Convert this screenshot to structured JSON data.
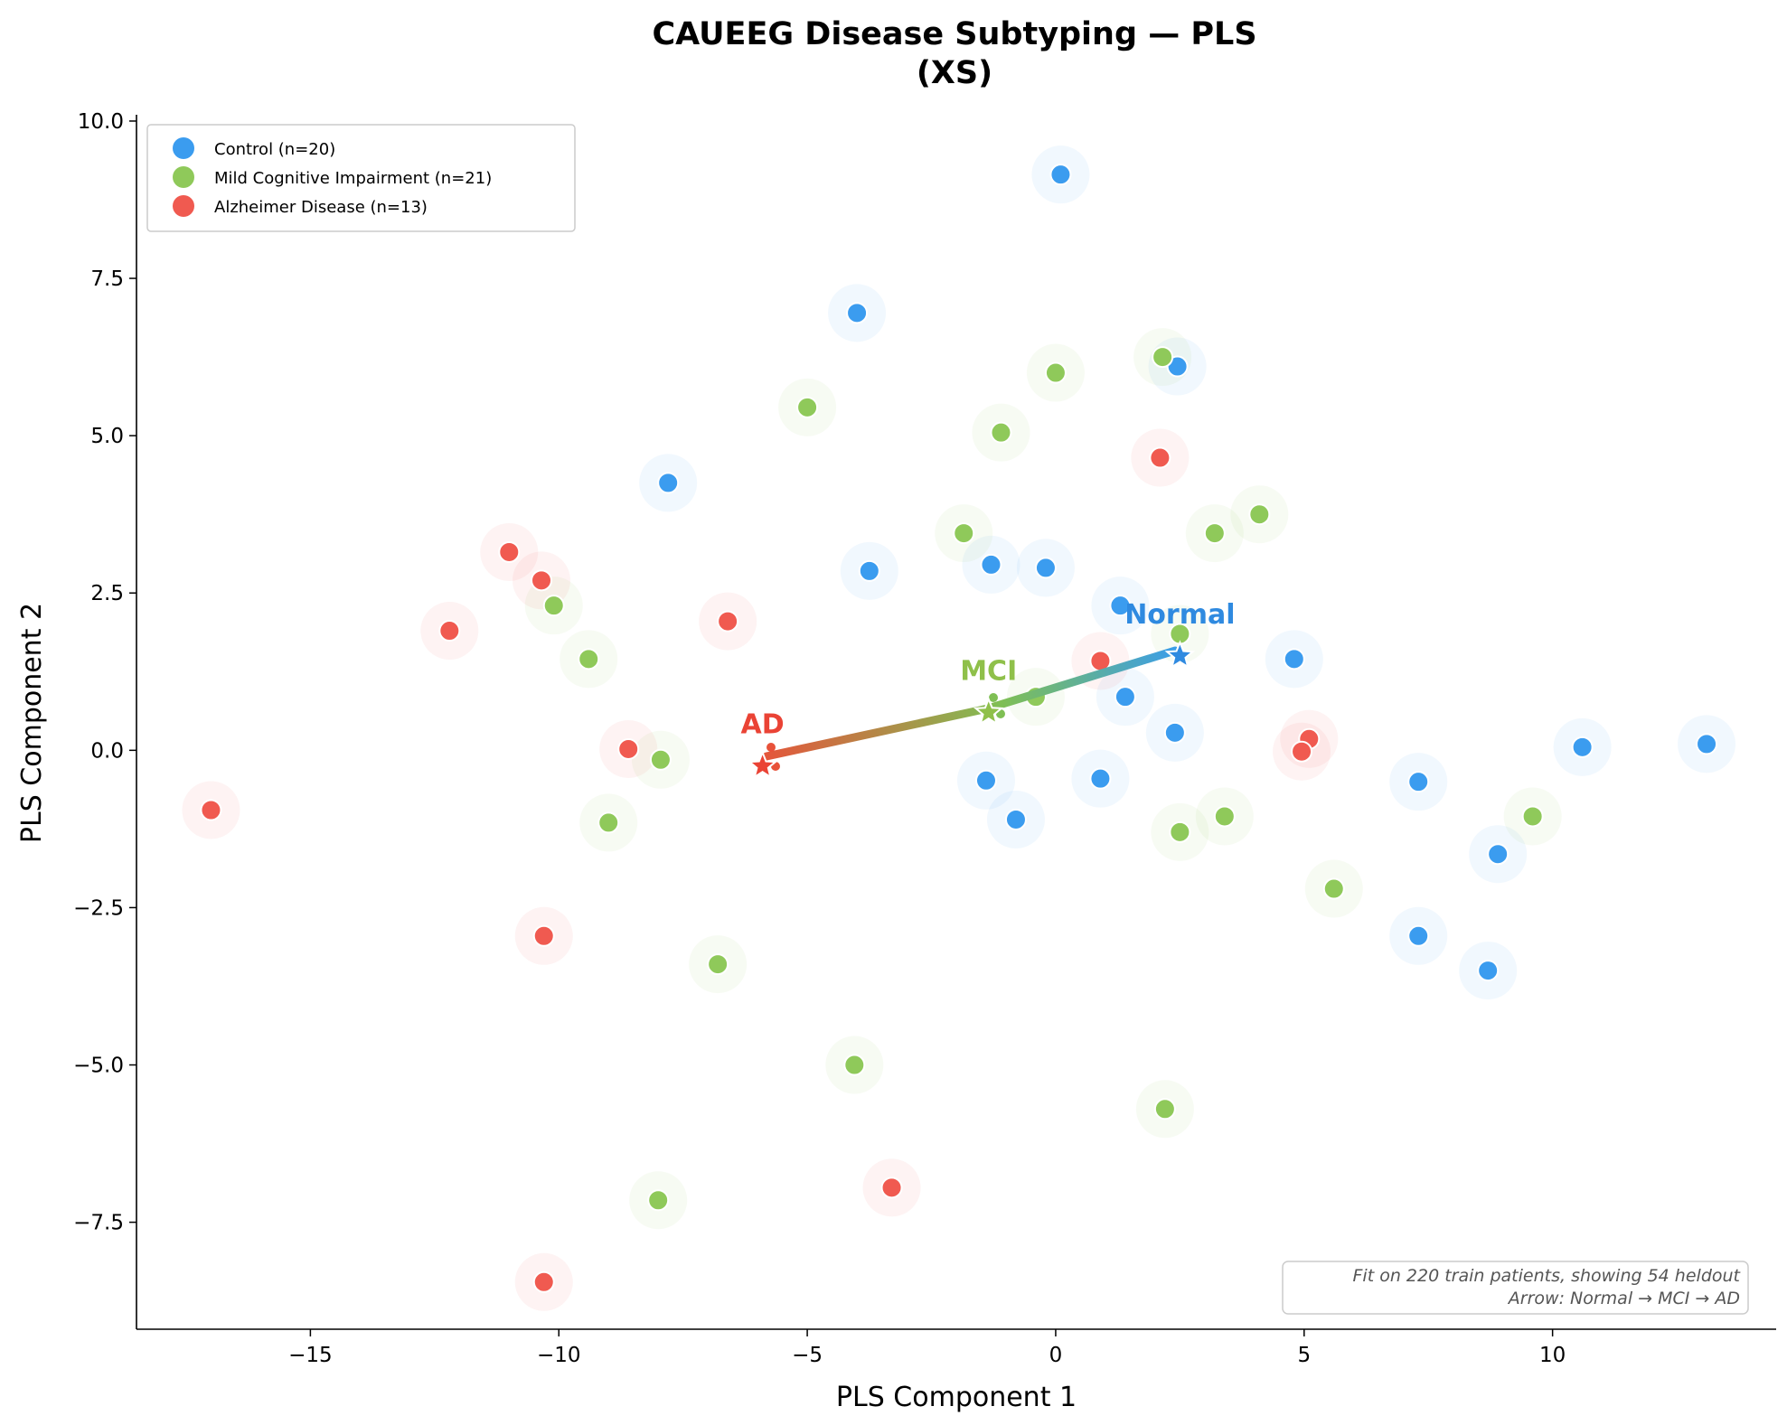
{
  "chart_data": {
    "type": "scatter",
    "title_lines": [
      "CAUEEG Disease Subtyping — PLS",
      "(XS)"
    ],
    "xlabel": "PLS Component 1",
    "ylabel": "PLS Component 2",
    "xlim": [
      -18.5,
      14.5
    ],
    "ylim": [
      -9.2,
      10.1
    ],
    "x_ticks": [
      -15,
      -10,
      -5,
      0,
      5,
      10
    ],
    "y_ticks": [
      -7.5,
      -5.0,
      -2.5,
      0.0,
      2.5,
      5.0,
      7.5,
      10.0
    ],
    "x_tick_labels": [
      "−15",
      "−10",
      "−5",
      "0",
      "5",
      "10"
    ],
    "y_tick_labels": [
      "−7.5",
      "−5.0",
      "−2.5",
      "0.0",
      "2.5",
      "5.0",
      "7.5",
      "10.0"
    ],
    "legend": [
      "Control (n=20)",
      "Mild Cognitive Impairment (n=21)",
      "Alzheimer Disease (n=13)"
    ],
    "series": [
      {
        "name": "Control (n=20)",
        "color": "#3b9cef",
        "points": [
          [
            0.1,
            9.15
          ],
          [
            -4.0,
            6.95
          ],
          [
            2.45,
            6.1
          ],
          [
            -7.8,
            4.25
          ],
          [
            -3.75,
            2.85
          ],
          [
            -1.3,
            2.95
          ],
          [
            -0.2,
            2.9
          ],
          [
            1.3,
            2.3
          ],
          [
            1.4,
            0.85
          ],
          [
            2.4,
            0.28
          ],
          [
            4.8,
            1.45
          ],
          [
            -1.4,
            -0.48
          ],
          [
            -0.8,
            -1.1
          ],
          [
            0.9,
            -0.45
          ],
          [
            7.3,
            -0.5
          ],
          [
            10.6,
            0.05
          ],
          [
            13.1,
            0.1
          ],
          [
            8.9,
            -1.65
          ],
          [
            7.3,
            -2.95
          ],
          [
            8.7,
            -3.5
          ]
        ]
      },
      {
        "name": "Mild Cognitive Impairment (n=21)",
        "color": "#8fc95a",
        "points": [
          [
            2.15,
            6.25
          ],
          [
            0.0,
            6.0
          ],
          [
            -5.0,
            5.45
          ],
          [
            -1.1,
            5.05
          ],
          [
            -1.85,
            3.45
          ],
          [
            3.2,
            3.45
          ],
          [
            4.1,
            3.75
          ],
          [
            -10.1,
            2.3
          ],
          [
            -9.4,
            1.45
          ],
          [
            2.5,
            1.85
          ],
          [
            -0.4,
            0.85
          ],
          [
            -7.95,
            -0.15
          ],
          [
            -9.0,
            -1.15
          ],
          [
            2.5,
            -1.3
          ],
          [
            3.4,
            -1.05
          ],
          [
            9.6,
            -1.05
          ],
          [
            5.6,
            -2.2
          ],
          [
            -6.8,
            -3.4
          ],
          [
            -4.05,
            -5.0
          ],
          [
            2.2,
            -5.7
          ],
          [
            -8.0,
            -7.15
          ]
        ]
      },
      {
        "name": "Alzheimer Disease (n=13)",
        "color": "#f05a50",
        "points": [
          [
            2.1,
            4.65
          ],
          [
            -11.0,
            3.15
          ],
          [
            -10.35,
            2.7
          ],
          [
            -12.2,
            1.9
          ],
          [
            -6.6,
            2.05
          ],
          [
            0.9,
            1.42
          ],
          [
            -8.6,
            0.02
          ],
          [
            5.1,
            0.18
          ],
          [
            4.95,
            -0.02
          ],
          [
            -17.0,
            -0.95
          ],
          [
            -10.3,
            -2.95
          ],
          [
            -3.3,
            -6.95
          ],
          [
            -10.3,
            -8.45
          ]
        ]
      }
    ],
    "centroids": [
      {
        "label": "Normal",
        "x": 2.5,
        "y": 1.5,
        "color": "#2f8ae0"
      },
      {
        "label": "MCI",
        "x": -1.35,
        "y": 0.6,
        "color": "#8fc04a"
      },
      {
        "label": "AD",
        "x": -5.9,
        "y": -0.25,
        "color": "#ea4335"
      }
    ],
    "footnote_lines": [
      "Fit on 220 train patients, showing 54 heldout",
      "Arrow: Normal → MCI → AD"
    ]
  }
}
